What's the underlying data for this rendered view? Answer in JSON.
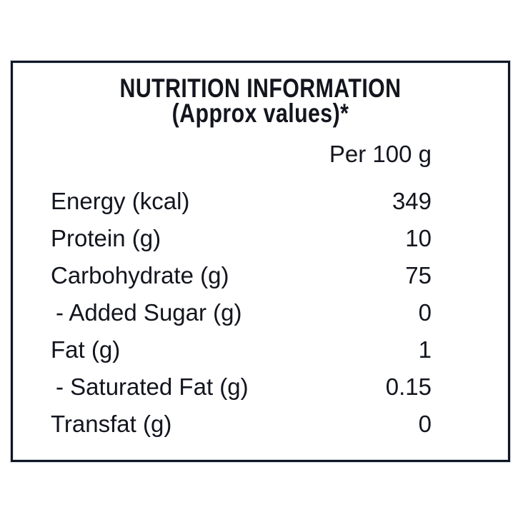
{
  "label": {
    "title_line1": "NUTRITION INFORMATION",
    "title_line2": "(Approx values)*",
    "column_header": "Per 100 g",
    "rows": [
      {
        "name": "Energy (kcal)",
        "value": "349"
      },
      {
        "name": "Protein (g)",
        "value": "10"
      },
      {
        "name": "Carbohydrate (g)",
        "value": "75"
      },
      {
        "name": "- Added Sugar (g)",
        "value": "0"
      },
      {
        "name": "Fat (g)",
        "value": "1"
      },
      {
        "name": "- Saturated Fat (g)",
        "value": "0.15"
      },
      {
        "name": "Transfat (g)",
        "value": "0"
      }
    ],
    "colors": {
      "text": "#13151e",
      "border": "#13151e",
      "background": "#ffffff"
    }
  }
}
